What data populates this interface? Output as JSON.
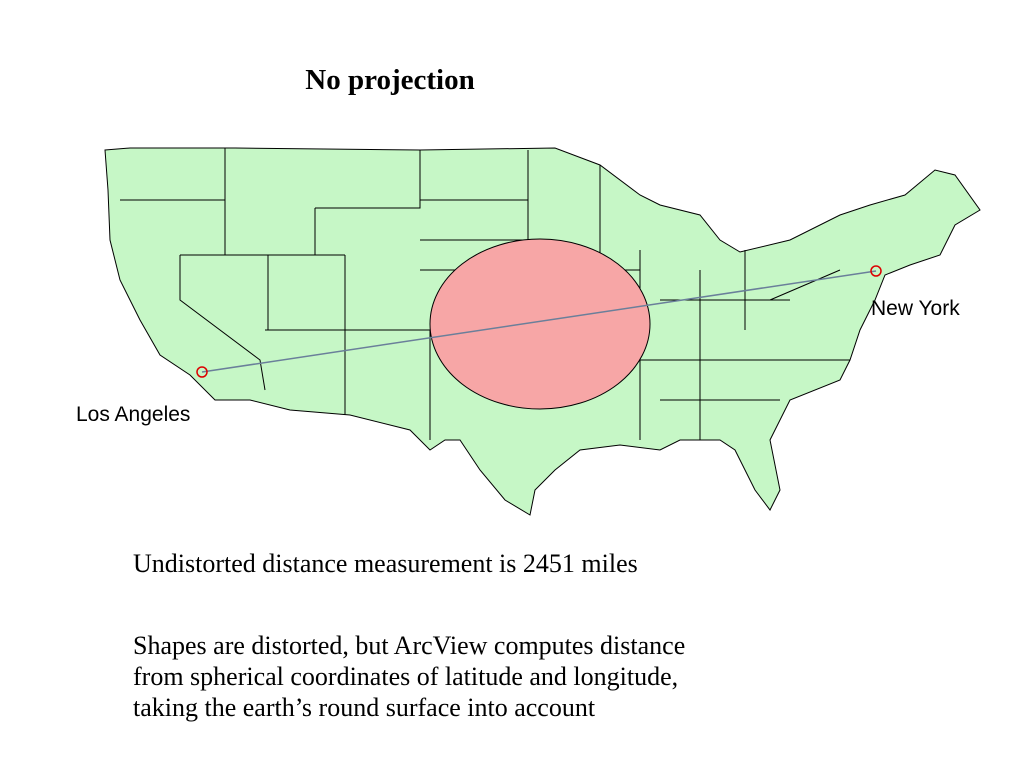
{
  "title": "No projection",
  "map": {
    "labels": [
      "Los Angeles",
      "New York"
    ]
  },
  "measurement": "Undistorted distance measurement is 2451 miles",
  "note": [
    "Shapes are distorted, but ArcView computes distance",
    "from spherical coordinates of latitude and longitude,",
    "taking the earth’s round surface into account"
  ]
}
